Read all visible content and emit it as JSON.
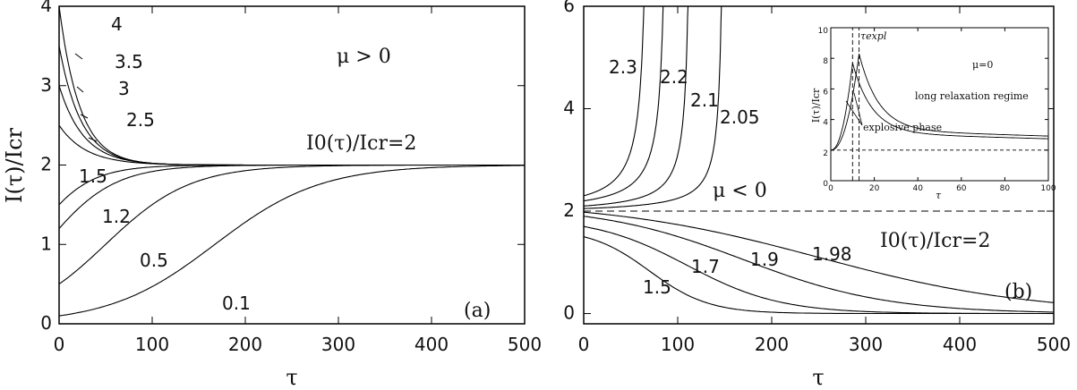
{
  "chart_data": [
    {
      "type": "line",
      "panel_label": "(a)",
      "xlabel": "τ",
      "ylabel": "I(τ)/Icr",
      "xlim": [
        0,
        500
      ],
      "ylim": [
        0,
        4
      ],
      "xticks": [
        "0",
        "100",
        "200",
        "300",
        "400",
        "500"
      ],
      "yticks": [
        "0",
        "1",
        "2",
        "3",
        "4"
      ],
      "annotations": [
        "μ > 0",
        "I0(τ)/Icr=2"
      ],
      "asymptote": 2,
      "series": [
        {
          "name": "4",
          "y0": 4.0,
          "rate": 0.045
        },
        {
          "name": "3.5",
          "y0": 3.5,
          "rate": 0.042
        },
        {
          "name": "3",
          "y0": 3.0,
          "rate": 0.038
        },
        {
          "name": "2.5",
          "y0": 2.5,
          "rate": 0.034
        },
        {
          "name": "1.5",
          "y0": 1.5,
          "rate": 0.03
        },
        {
          "name": "1.2",
          "y0": 1.2,
          "rate": 0.025
        },
        {
          "name": "0.5",
          "y0": 0.5,
          "rate": 0.02
        },
        {
          "name": "0.1",
          "y0": 0.1,
          "rate": 0.016
        }
      ]
    },
    {
      "type": "line",
      "panel_label": "(b)",
      "xlabel": "τ",
      "xlim": [
        0,
        500
      ],
      "ylim": [
        -0.2,
        6
      ],
      "xticks": [
        "0",
        "100",
        "200",
        "300",
        "400",
        "500"
      ],
      "yticks": [
        "0",
        "2",
        "4",
        "6"
      ],
      "annotations": [
        "μ < 0",
        "I0(τ)/Icr=2"
      ],
      "reference_line": 2,
      "series": [
        {
          "name": "2.3",
          "y0": 2.3,
          "blowup_tau": 70
        },
        {
          "name": "2.2",
          "y0": 2.2,
          "blowup_tau": 90
        },
        {
          "name": "2.1",
          "y0": 2.1,
          "blowup_tau": 115
        },
        {
          "name": "2.05",
          "y0": 2.05,
          "blowup_tau": 150
        },
        {
          "name": "1.98",
          "y0": 1.98,
          "decay_center": 250
        },
        {
          "name": "1.9",
          "y0": 1.9,
          "decay_center": 170
        },
        {
          "name": "1.7",
          "y0": 1.7,
          "decay_center": 110
        },
        {
          "name": "1.5",
          "y0": 1.5,
          "decay_center": 70
        }
      ]
    },
    {
      "type": "line",
      "panel": "inset",
      "xlabel": "τ",
      "ylabel": "I(τ)/Icr",
      "xlim": [
        0,
        100
      ],
      "ylim": [
        0,
        10
      ],
      "xticks": [
        "0",
        "20",
        "40",
        "60",
        "80",
        "100"
      ],
      "yticks": [
        "0",
        "2",
        "4",
        "6",
        "8",
        "10"
      ],
      "annotations": [
        "τexpl",
        "μ=0",
        "long relaxation regime",
        "explosive phase"
      ],
      "reference_line": 2,
      "markers_tau": [
        10,
        13
      ],
      "series": [
        {
          "peak_tau": 10,
          "peak": 7.7,
          "tail": 3.1
        },
        {
          "peak_tau": 13,
          "peak": 8.3,
          "tail": 3.3
        }
      ]
    }
  ]
}
